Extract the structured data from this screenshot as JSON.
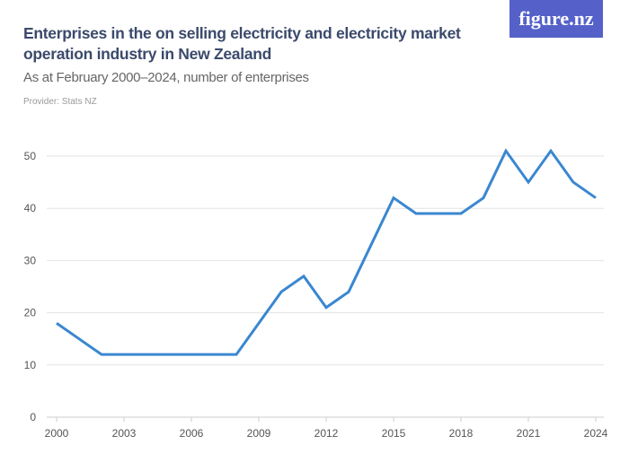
{
  "header": {
    "title": "Enterprises in the on selling electricity and electricity market operation industry in New Zealand",
    "subtitle": "As at February 2000–2024, number of enterprises",
    "provider": "Provider: Stats NZ",
    "logo": "figure.nz"
  },
  "chart_data": {
    "type": "line",
    "title": "Enterprises in the on selling electricity and electricity market operation industry in New Zealand",
    "subtitle": "As at February 2000–2024, number of enterprises",
    "x": [
      2000,
      2001,
      2002,
      2003,
      2004,
      2005,
      2006,
      2007,
      2008,
      2009,
      2010,
      2011,
      2012,
      2013,
      2014,
      2015,
      2016,
      2017,
      2018,
      2019,
      2020,
      2021,
      2022,
      2023,
      2024
    ],
    "series": [
      {
        "values": [
          18,
          15,
          12,
          12,
          12,
          12,
          12,
          12,
          12,
          18,
          24,
          27,
          21,
          24,
          33,
          42,
          39,
          39,
          39,
          42,
          51,
          45,
          51,
          45,
          42
        ],
        "color": "#3a87d0"
      }
    ],
    "xticks": [
      "2000",
      "2003",
      "2006",
      "2009",
      "2012",
      "2015",
      "2018",
      "2021",
      "2024"
    ],
    "yticks": [
      "0",
      "10",
      "20",
      "30",
      "40",
      "50"
    ],
    "xlim": [
      2000,
      2024
    ],
    "ylim": [
      0,
      50
    ],
    "grid": "horizontal",
    "legend": "none"
  }
}
